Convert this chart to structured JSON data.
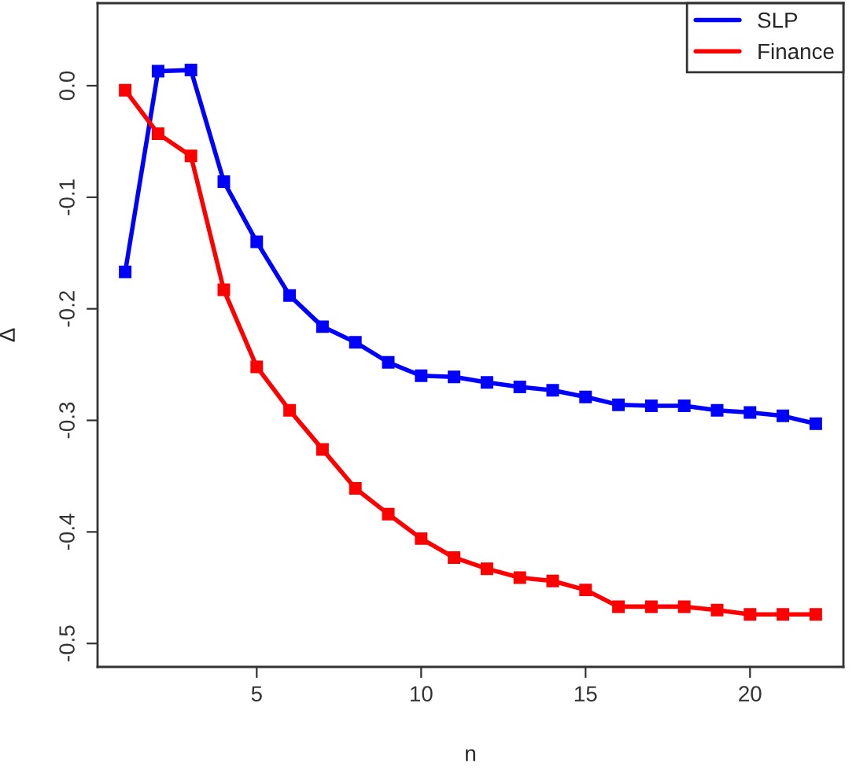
{
  "chart_data": {
    "type": "line",
    "xlabel": "n",
    "ylabel": "Δ",
    "x": [
      1,
      2,
      3,
      4,
      5,
      6,
      7,
      8,
      9,
      10,
      11,
      12,
      13,
      14,
      15,
      16,
      17,
      18,
      19,
      20,
      21,
      22
    ],
    "series": [
      {
        "name": "SLP",
        "color": "#0000ff",
        "values": [
          -0.167,
          0.013,
          0.014,
          -0.086,
          -0.14,
          -0.188,
          -0.216,
          -0.23,
          -0.248,
          -0.26,
          -0.261,
          -0.266,
          -0.27,
          -0.273,
          -0.279,
          -0.286,
          -0.287,
          -0.287,
          -0.291,
          -0.293,
          -0.296,
          -0.303
        ]
      },
      {
        "name": "Finance",
        "color": "#ff0000",
        "values": [
          -0.004,
          -0.043,
          -0.063,
          -0.183,
          -0.252,
          -0.291,
          -0.326,
          -0.361,
          -0.384,
          -0.406,
          -0.423,
          -0.433,
          -0.441,
          -0.444,
          -0.452,
          -0.467,
          -0.467,
          -0.467,
          -0.47,
          -0.474,
          -0.474,
          -0.474
        ]
      }
    ],
    "xlim": [
      0.16,
      22.84
    ],
    "ylim": [
      -0.521,
      0.074
    ],
    "xticks": [
      5,
      10,
      15,
      20
    ],
    "yticks": [
      {
        "value": 0,
        "label": "0.0"
      },
      -0.1,
      -0.2,
      -0.3,
      -0.4,
      -0.5
    ],
    "grid": false,
    "legend": "top right",
    "marker": "square",
    "line_style": "solid"
  }
}
